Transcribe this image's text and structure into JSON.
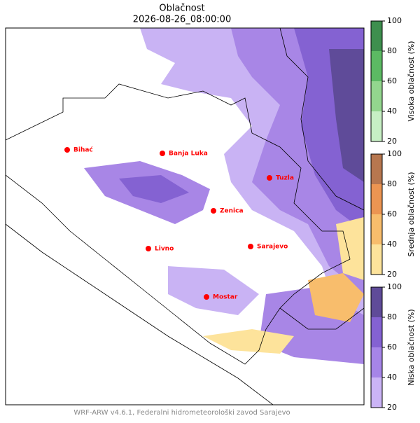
{
  "title": "Oblačnost",
  "subtitle": "2026-08-26_08:00:00",
  "cities": [
    "Bihać",
    "Banja Luka",
    "Tuzla",
    "Zenica",
    "Livno",
    "Sarajevo",
    "Mostar"
  ],
  "city_color": "#ff0000",
  "colorbars": [
    {
      "label": "Visoka oblačnost (%)",
      "ticks": [
        20,
        40,
        60,
        80,
        100
      ],
      "colors": [
        "#c7efc4",
        "#93d68e",
        "#5cba63",
        "#3e8f4e"
      ]
    },
    {
      "label": "Srednja oblačnost (%)",
      "ticks": [
        20,
        40,
        60,
        80,
        100
      ],
      "colors": [
        "#fde39b",
        "#f8bd6c",
        "#ec9552",
        "#b7774f"
      ]
    },
    {
      "label": "Niska oblačnost (%)",
      "ticks": [
        20,
        40,
        60,
        80,
        100
      ],
      "colors": [
        "#cbb4f6",
        "#a685e8",
        "#8462d2",
        "#5f4b99"
      ]
    }
  ],
  "footer": "WRF-ARW v4.6.1, Federalni hidrometeorološki zavod Sarajevo"
}
